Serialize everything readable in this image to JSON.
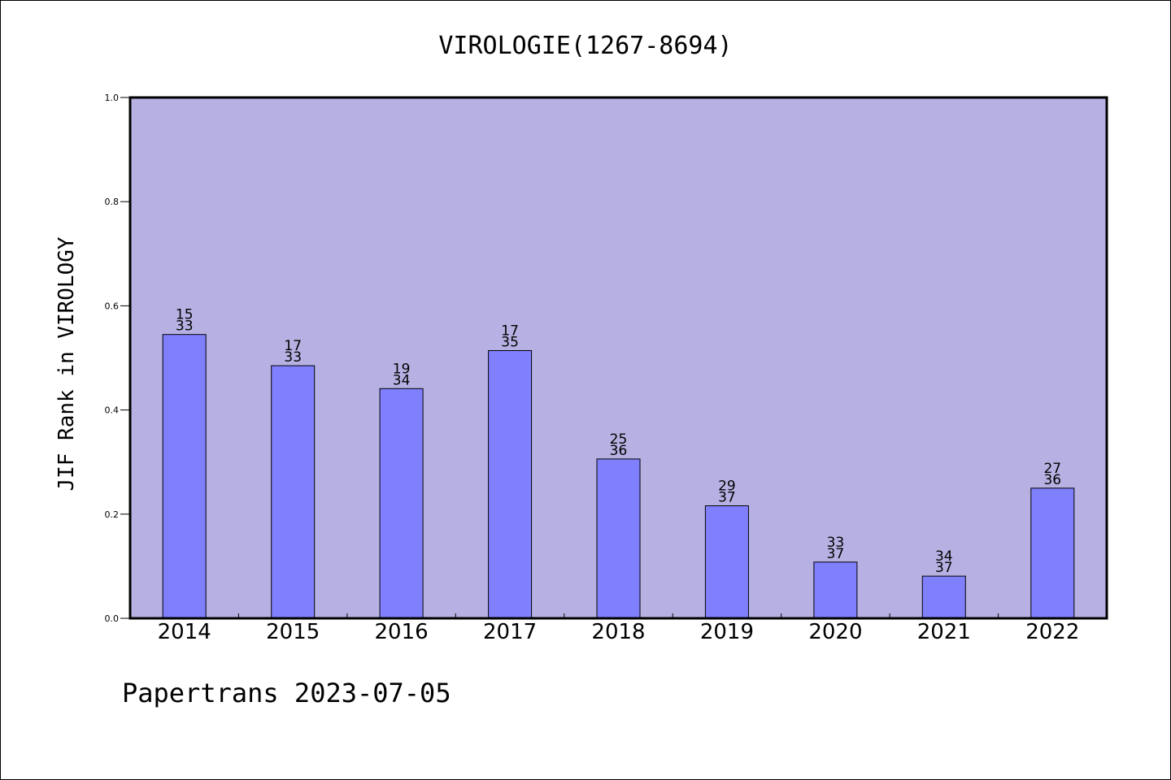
{
  "chart_data": {
    "type": "bar",
    "title": "VIROLOGIE(1267-8694)",
    "ylabel": "JIF Rank in VIROLOGY",
    "xlabel": "",
    "ylim": [
      0,
      1.0
    ],
    "yticks": [
      "0.0",
      "0.2",
      "0.4",
      "0.6",
      "0.8",
      "1.0"
    ],
    "categories": [
      "2014",
      "2015",
      "2016",
      "2017",
      "2018",
      "2019",
      "2020",
      "2021",
      "2022"
    ],
    "values": [
      0.545,
      0.485,
      0.441,
      0.514,
      0.306,
      0.216,
      0.108,
      0.081,
      0.25
    ],
    "labels_top": [
      "15",
      "17",
      "19",
      "17",
      "25",
      "29",
      "33",
      "34",
      "27"
    ],
    "labels_bottom": [
      "33",
      "33",
      "34",
      "35",
      "36",
      "37",
      "37",
      "37",
      "36"
    ],
    "grid": false,
    "legend": "none",
    "colors": {
      "plot_background": "#b6b1e2",
      "bar_fill": "#8080ff",
      "bar_edge": "#000000"
    }
  },
  "footer": "Papertrans 2023-07-05"
}
